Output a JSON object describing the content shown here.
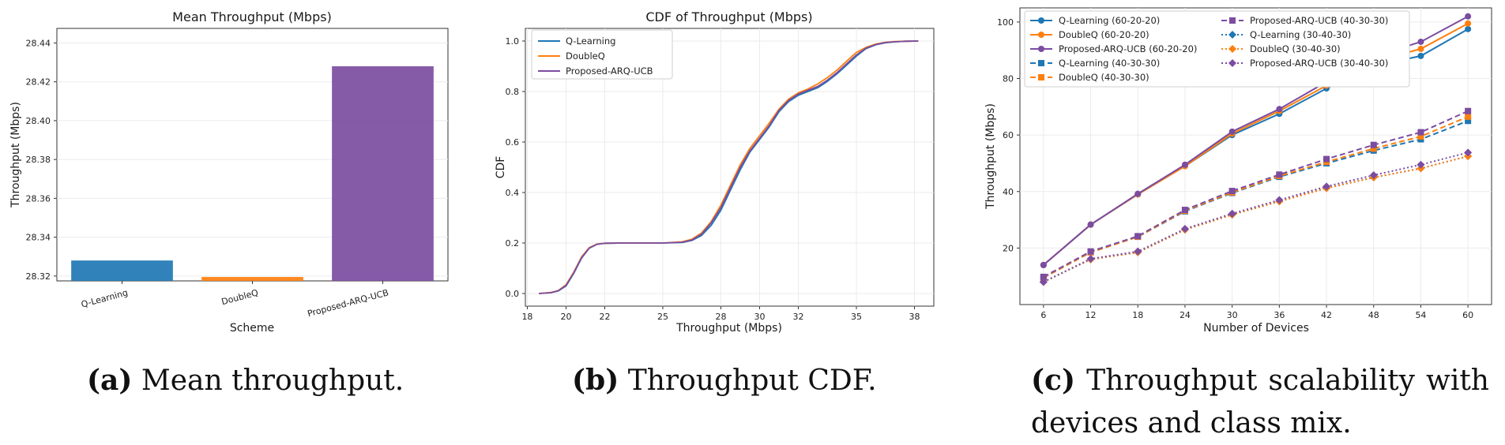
{
  "colors": {
    "q": "#1f77b4",
    "d": "#ff7f0e",
    "p": "#7b4ca0"
  },
  "captions": [
    {
      "label": "(a)",
      "text": "Mean throughput."
    },
    {
      "label": "(b)",
      "text": "Throughput CDF."
    },
    {
      "label": "(c)",
      "text": "Throughput scalability with devices and class mix."
    }
  ],
  "chart_data": [
    {
      "type": "bar",
      "title": "Mean Throughput (Mbps)",
      "xlabel": "Scheme",
      "ylabel": "Throughput (Mbps)",
      "categories": [
        "Q-Learning",
        "DoubleQ",
        "Proposed-ARQ-UCB"
      ],
      "values": [
        28.328,
        28.3195,
        28.428
      ],
      "colors": [
        "#1f77b4",
        "#ff7f0e",
        "#7b4ca0"
      ],
      "ylim": [
        28.3175,
        28.4475
      ],
      "yticks": [
        28.32,
        28.34,
        28.36,
        28.38,
        28.4,
        28.42,
        28.44
      ],
      "yticklabels": [
        "28.32",
        "28.34",
        "28.36",
        "28.38",
        "28.40",
        "28.42",
        "28.44"
      ]
    },
    {
      "type": "line",
      "title": "CDF of Throughput (Mbps)",
      "xlabel": "Throughput (Mbps)",
      "ylabel": "CDF",
      "xlim": [
        17.9,
        39.0
      ],
      "ylim": [
        -0.05,
        1.05
      ],
      "xticks": [
        18,
        20,
        22,
        25,
        28,
        30,
        32,
        35,
        38
      ],
      "yticks": [
        0.0,
        0.2,
        0.4,
        0.6,
        0.8,
        1.0
      ],
      "yticklabels": [
        "0.0",
        "0.2",
        "0.4",
        "0.6",
        "0.8",
        "1.0"
      ],
      "legend_position": "top-left",
      "series": [
        {
          "name": "Q-Learning",
          "color": "#1f77b4",
          "x": [
            18.6,
            19.2,
            19.6,
            20.0,
            20.4,
            20.8,
            21.2,
            21.6,
            22.0,
            23.0,
            24.0,
            25.0,
            26.0,
            26.5,
            27.0,
            27.5,
            28.0,
            28.5,
            29.0,
            29.5,
            30.0,
            30.5,
            31.0,
            31.5,
            32.0,
            32.5,
            33.0,
            33.5,
            34.0,
            34.5,
            35.0,
            35.5,
            36.0,
            36.5,
            37.0,
            37.5,
            38.2
          ],
          "y": [
            0.0,
            0.003,
            0.01,
            0.03,
            0.08,
            0.14,
            0.18,
            0.195,
            0.199,
            0.2,
            0.2,
            0.2,
            0.202,
            0.21,
            0.23,
            0.27,
            0.33,
            0.41,
            0.49,
            0.56,
            0.61,
            0.66,
            0.72,
            0.76,
            0.785,
            0.8,
            0.815,
            0.84,
            0.87,
            0.905,
            0.94,
            0.97,
            0.985,
            0.993,
            0.997,
            0.999,
            1.0
          ]
        },
        {
          "name": "DoubleQ",
          "color": "#ff7f0e",
          "x": [
            18.6,
            19.2,
            19.6,
            20.0,
            20.4,
            20.8,
            21.2,
            21.6,
            22.0,
            23.0,
            24.0,
            25.0,
            26.0,
            26.5,
            27.0,
            27.5,
            28.0,
            28.5,
            29.0,
            29.5,
            30.0,
            30.5,
            31.0,
            31.5,
            32.0,
            32.5,
            33.0,
            33.5,
            34.0,
            34.5,
            35.0,
            35.5,
            36.0,
            36.5,
            37.0,
            37.5,
            38.2
          ],
          "y": [
            0.0,
            0.004,
            0.012,
            0.035,
            0.085,
            0.145,
            0.182,
            0.196,
            0.199,
            0.2,
            0.2,
            0.2,
            0.205,
            0.215,
            0.24,
            0.285,
            0.35,
            0.43,
            0.51,
            0.575,
            0.625,
            0.675,
            0.73,
            0.77,
            0.795,
            0.81,
            0.83,
            0.855,
            0.885,
            0.92,
            0.955,
            0.975,
            0.988,
            0.995,
            0.998,
            0.999,
            1.0
          ]
        },
        {
          "name": "Proposed-ARQ-UCB",
          "color": "#7b4ca0",
          "x": [
            18.6,
            19.2,
            19.6,
            20.0,
            20.4,
            20.8,
            21.2,
            21.6,
            22.0,
            23.0,
            24.0,
            25.0,
            26.0,
            26.5,
            27.0,
            27.5,
            28.0,
            28.5,
            29.0,
            29.5,
            30.0,
            30.5,
            31.0,
            31.5,
            32.0,
            32.5,
            33.0,
            33.5,
            34.0,
            34.5,
            35.0,
            35.5,
            36.0,
            36.5,
            37.0,
            37.5,
            38.2
          ],
          "y": [
            0.0,
            0.003,
            0.011,
            0.032,
            0.082,
            0.142,
            0.18,
            0.195,
            0.199,
            0.2,
            0.2,
            0.2,
            0.203,
            0.212,
            0.235,
            0.28,
            0.34,
            0.42,
            0.5,
            0.565,
            0.615,
            0.665,
            0.725,
            0.765,
            0.79,
            0.805,
            0.82,
            0.845,
            0.875,
            0.91,
            0.945,
            0.972,
            0.986,
            0.994,
            0.997,
            0.999,
            1.0
          ]
        }
      ]
    },
    {
      "type": "line",
      "title": "",
      "xlabel": "Number of Devices",
      "ylabel": "Throughput (Mbps)",
      "x": [
        6,
        12,
        18,
        24,
        30,
        36,
        42,
        48,
        54,
        60
      ],
      "xlim": [
        3,
        63
      ],
      "ylim": [
        0,
        105
      ],
      "yticks": [
        20,
        40,
        60,
        80,
        100
      ],
      "legend_position": "top-left",
      "series": [
        {
          "name": "Q-Learning (60-20-20)",
          "color": "#1f77b4",
          "style": "solid",
          "marker": "circle",
          "values": [
            14,
            28.3,
            39,
            49,
            60,
            67.5,
            76.5,
            84.5,
            88,
            97.5
          ]
        },
        {
          "name": "DoubleQ (60-20-20)",
          "color": "#ff7f0e",
          "style": "solid",
          "marker": "circle",
          "values": [
            14,
            28.3,
            39,
            49,
            60.5,
            68.5,
            77.5,
            86,
            90.5,
            99.5
          ]
        },
        {
          "name": "Proposed-ARQ-UCB (60-20-20)",
          "color": "#7b4ca0",
          "style": "solid",
          "marker": "circle",
          "values": [
            14,
            28.3,
            39.2,
            49.5,
            61.2,
            69.2,
            78.8,
            87.8,
            93,
            102
          ]
        },
        {
          "name": "Q-Learning (40-30-30)",
          "color": "#1f77b4",
          "style": "dashed",
          "marker": "square",
          "values": [
            9.5,
            18.5,
            24,
            33,
            39.5,
            45.2,
            50,
            54.5,
            58.5,
            65
          ]
        },
        {
          "name": "DoubleQ (40-30-30)",
          "color": "#ff7f0e",
          "style": "dashed",
          "marker": "square",
          "values": [
            9.5,
            18.5,
            24,
            33.2,
            39.7,
            45.5,
            50.5,
            55.2,
            59.5,
            66.5
          ]
        },
        {
          "name": "Proposed-ARQ-UCB (40-30-30)",
          "color": "#7b4ca0",
          "style": "dashed",
          "marker": "square",
          "values": [
            9.8,
            18.8,
            24.2,
            33.5,
            40.2,
            46,
            51.5,
            56.5,
            61,
            68.5
          ]
        },
        {
          "name": "Q-Learning (30-40-30)",
          "color": "#1f77b4",
          "style": "dotted",
          "marker": "diamond",
          "values": [
            8,
            16,
            18.5,
            26.5,
            31.8,
            36.5,
            41.2,
            45,
            48.2,
            52.5
          ]
        },
        {
          "name": "DoubleQ (30-40-30)",
          "color": "#ff7f0e",
          "style": "dotted",
          "marker": "diamond",
          "values": [
            8,
            16,
            18.5,
            26.5,
            31.8,
            36.5,
            41.2,
            45,
            48.2,
            52.5
          ]
        },
        {
          "name": "Proposed-ARQ-UCB (30-40-30)",
          "color": "#7b4ca0",
          "style": "dotted",
          "marker": "diamond",
          "values": [
            8,
            16.2,
            18.8,
            26.8,
            32.2,
            37,
            41.8,
            45.8,
            49.5,
            53.8
          ]
        }
      ]
    }
  ]
}
